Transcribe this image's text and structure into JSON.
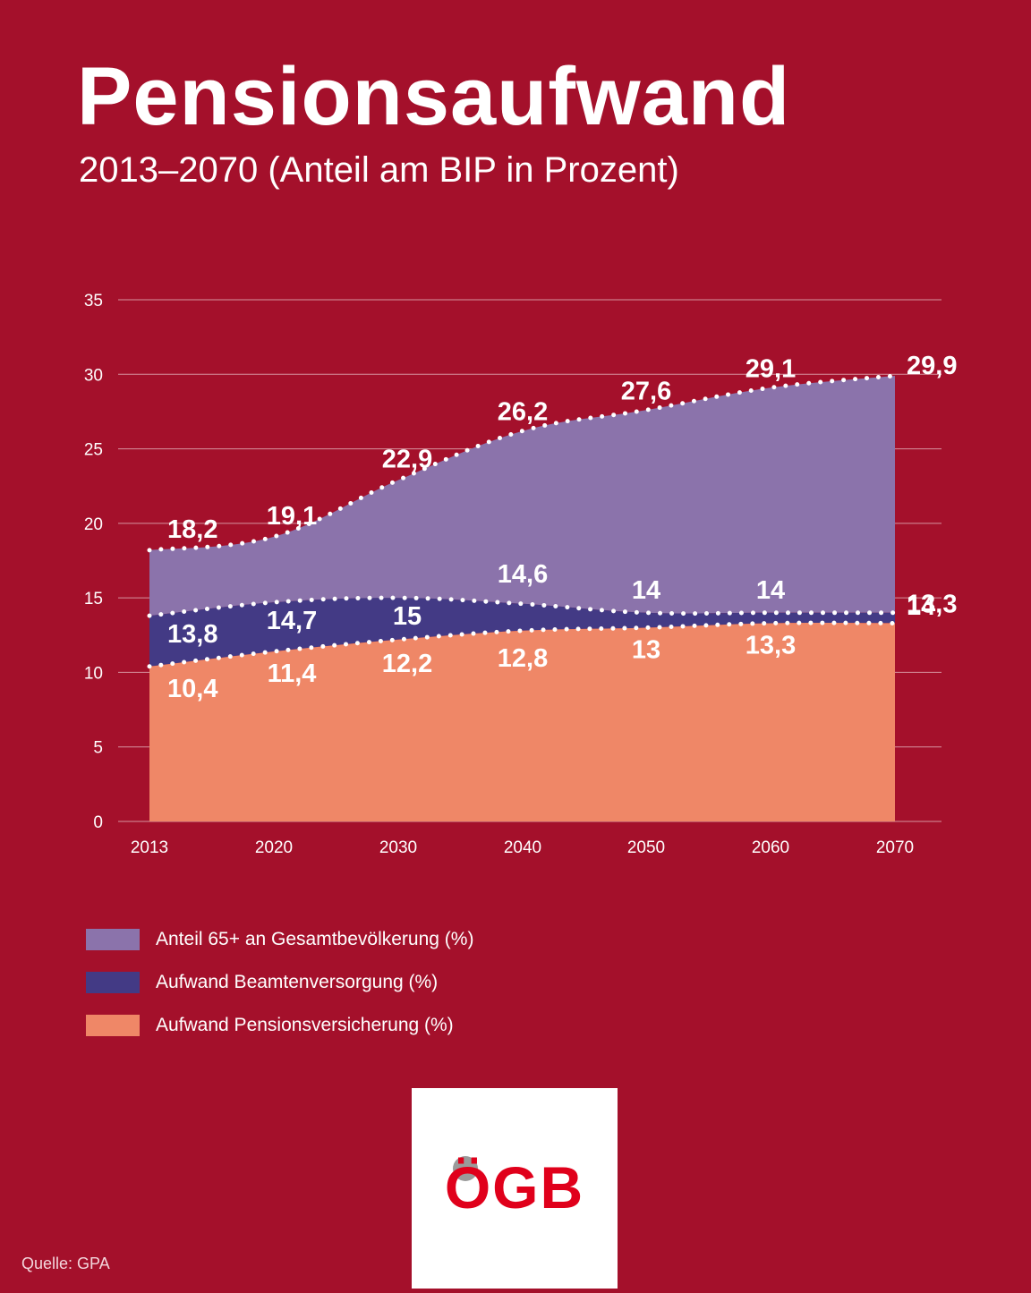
{
  "header": {
    "title": "Pensionsaufwand",
    "subtitle": "2013–2070 (Anteil am BIP in Prozent)"
  },
  "chart_data": {
    "type": "area",
    "x": [
      2013,
      2020,
      2030,
      2040,
      2050,
      2060,
      2070
    ],
    "categories": [
      "2013",
      "2020",
      "2030",
      "2040",
      "2050",
      "2060",
      "2070"
    ],
    "ylim": [
      0,
      35
    ],
    "yticks": [
      "0",
      "5",
      "10",
      "15",
      "20",
      "25",
      "30",
      "35"
    ],
    "grid": true,
    "series": [
      {
        "name": "Anteil 65+ an Gesamtbevölkerung (%)",
        "color": "#8b73ab",
        "values": [
          18.2,
          19.1,
          22.9,
          26.2,
          27.6,
          29.1,
          29.9
        ],
        "labels": [
          "18,2",
          "19,1",
          "22,9",
          "26,2",
          "27,6",
          "29,1",
          "29,9"
        ]
      },
      {
        "name": "Aufwand Beamtenversorgung (%)",
        "color": "#433a85",
        "values": [
          13.8,
          14.7,
          15,
          14.6,
          14,
          14,
          14
        ],
        "labels": [
          "13,8",
          "14,7",
          "15",
          "14,6",
          "14",
          "14",
          "14"
        ]
      },
      {
        "name": "Aufwand Pensionsversicherung (%)",
        "color": "#ef8767",
        "values": [
          10.4,
          11.4,
          12.2,
          12.8,
          13,
          13.3,
          13.3
        ],
        "labels": [
          "10,4",
          "11,4",
          "12,2",
          "12,8",
          "13",
          "13,3",
          "13,3"
        ]
      }
    ],
    "legend_position": "bottom-left"
  },
  "legend": [
    {
      "label": "Anteil 65+ an Gesamtbevölkerung (%)",
      "color": "#8b73ab"
    },
    {
      "label": "Aufwand Beamtenversorgung (%)",
      "color": "#433a85"
    },
    {
      "label": "Aufwand Pensionsversicherung (%)",
      "color": "#ef8767"
    }
  ],
  "logo": {
    "text": "ÖGB",
    "color": "#e0001b"
  },
  "footer": {
    "source": "Quelle: GPA"
  }
}
